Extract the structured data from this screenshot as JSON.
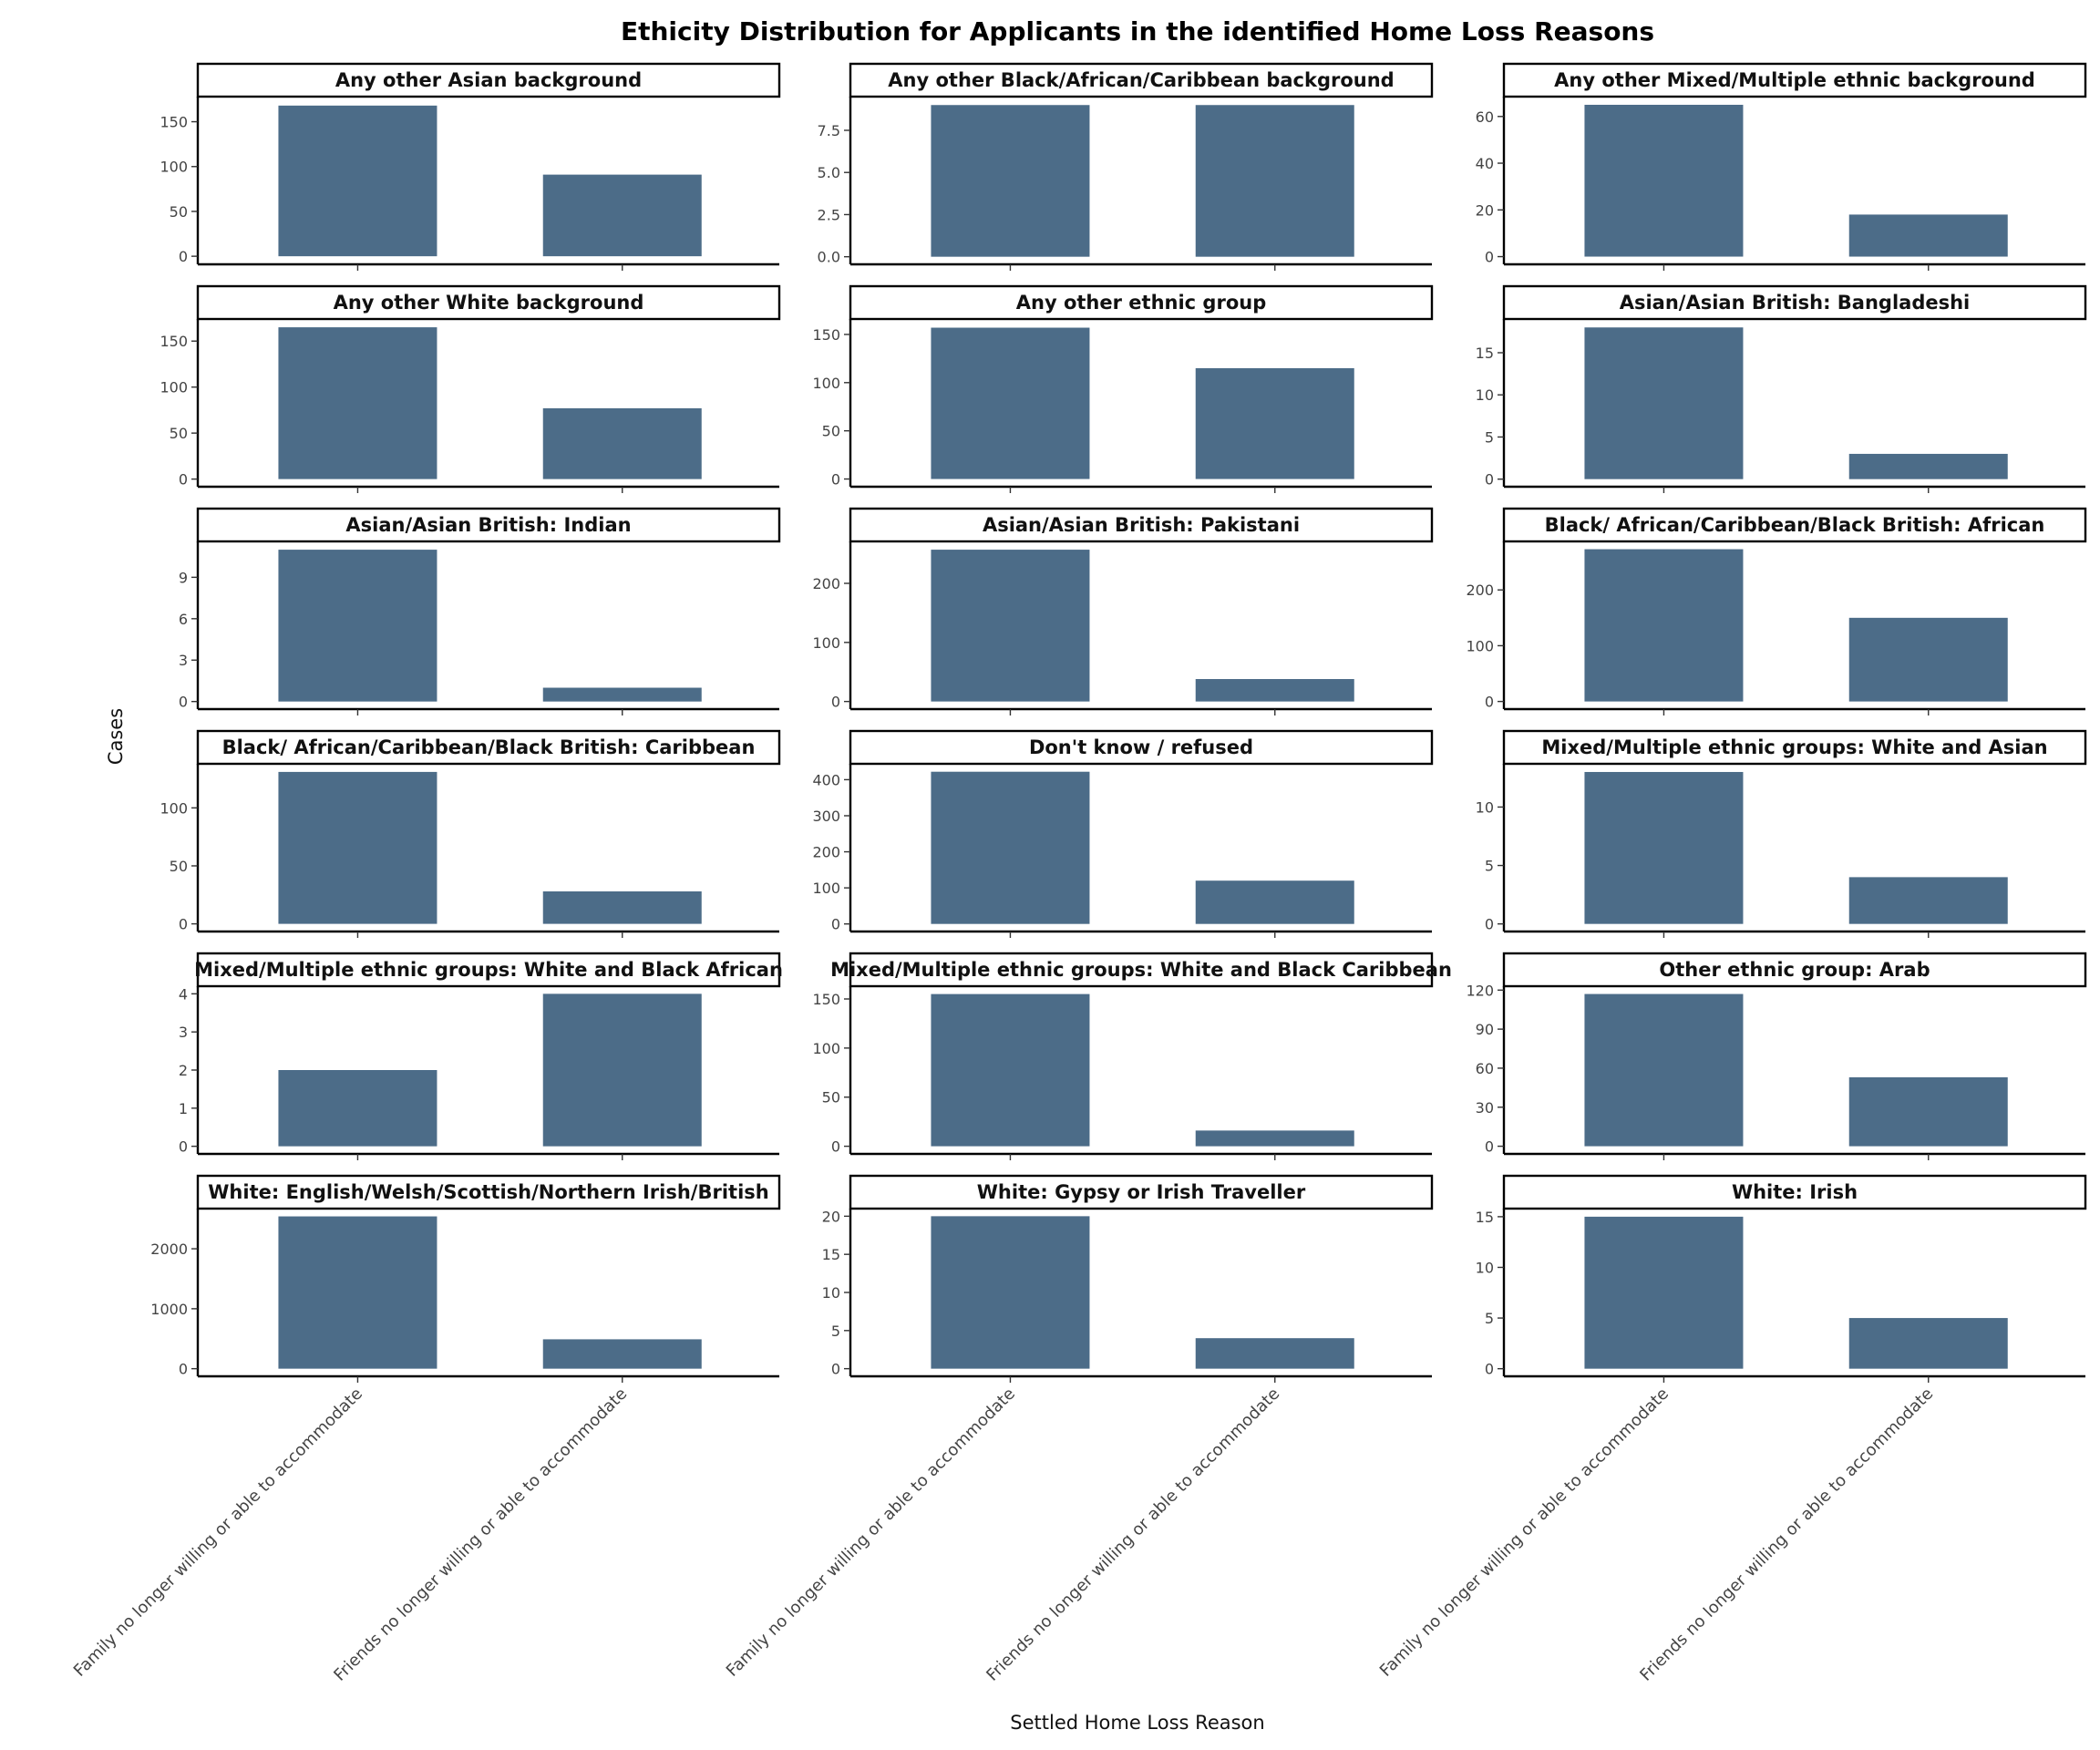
{
  "chart_data": {
    "type": "bar",
    "title": "Ethicity Distribution for Applicants in the identified Home Loss Reasons",
    "xlabel": "Settled Home Loss Reason",
    "ylabel": "Cases",
    "categories": [
      "Family no longer willing or able to accommodate",
      "Friends no longer willing or able to accommodate"
    ],
    "bar_color": "#4c6c88",
    "grid": false,
    "facets": [
      {
        "title": "Any other Asian background",
        "values": [
          168,
          91
        ],
        "ylim": [
          -9,
          178
        ],
        "yticks": [
          0,
          50,
          100,
          150
        ],
        "yticklabels": [
          "0",
          "50",
          "100",
          "150"
        ]
      },
      {
        "title": "Any other Black/African/Caribbean background",
        "values": [
          9,
          9
        ],
        "ylim": [
          -0.45,
          9.5
        ],
        "yticks": [
          0,
          2.5,
          5,
          7.5
        ],
        "yticklabels": [
          "0.0",
          "2.5",
          "5.0",
          "7.5"
        ]
      },
      {
        "title": "Any other Mixed/Multiple ethnic background",
        "values": [
          65,
          18
        ],
        "ylim": [
          -3.3,
          68.5
        ],
        "yticks": [
          0,
          20,
          40,
          60
        ],
        "yticklabels": [
          "0",
          "20",
          "40",
          "60"
        ]
      },
      {
        "title": "Any other White background",
        "values": [
          165,
          77
        ],
        "ylim": [
          -8.3,
          174
        ],
        "yticks": [
          0,
          50,
          100,
          150
        ],
        "yticklabels": [
          "0",
          "50",
          "100",
          "150"
        ]
      },
      {
        "title": "Any other ethnic group",
        "values": [
          157,
          115
        ],
        "ylim": [
          -8,
          166
        ],
        "yticks": [
          0,
          50,
          100,
          150
        ],
        "yticklabels": [
          "0",
          "50",
          "100",
          "150"
        ]
      },
      {
        "title": "Asian/Asian British: Bangladeshi",
        "values": [
          18,
          3
        ],
        "ylim": [
          -0.9,
          19
        ],
        "yticks": [
          0,
          5,
          10,
          15
        ],
        "yticklabels": [
          "0",
          "5",
          "10",
          "15"
        ]
      },
      {
        "title": "Asian/Asian British: Indian",
        "values": [
          11,
          1
        ],
        "ylim": [
          -0.55,
          11.6
        ],
        "yticks": [
          0,
          3,
          6,
          9
        ],
        "yticklabels": [
          "0",
          "3",
          "6",
          "9"
        ]
      },
      {
        "title": "Asian/Asian British: Pakistani",
        "values": [
          257,
          38
        ],
        "ylim": [
          -12.9,
          271
        ],
        "yticks": [
          0,
          100,
          200
        ],
        "yticklabels": [
          "0",
          "100",
          "200"
        ]
      },
      {
        "title": "Black/ African/Caribbean/Black British: African",
        "values": [
          273,
          150
        ],
        "ylim": [
          -13.7,
          287
        ],
        "yticks": [
          0,
          100,
          200
        ],
        "yticklabels": [
          "0",
          "100",
          "200"
        ]
      },
      {
        "title": "Black/ African/Caribbean/Black British: Caribbean",
        "values": [
          131,
          28
        ],
        "ylim": [
          -6.6,
          138
        ],
        "yticks": [
          0,
          50,
          100
        ],
        "yticklabels": [
          "0",
          "50",
          "100"
        ]
      },
      {
        "title": "Don't know / refused",
        "values": [
          422,
          120
        ],
        "ylim": [
          -21,
          444
        ],
        "yticks": [
          0,
          100,
          200,
          300,
          400
        ],
        "yticklabels": [
          "0",
          "100",
          "200",
          "300",
          "400"
        ]
      },
      {
        "title": "Mixed/Multiple ethnic groups: White and Asian",
        "values": [
          13,
          4
        ],
        "ylim": [
          -0.65,
          13.7
        ],
        "yticks": [
          0,
          5,
          10
        ],
        "yticklabels": [
          "0",
          "5",
          "10"
        ]
      },
      {
        "title": "Mixed/Multiple ethnic groups: White and Black African",
        "values": [
          2,
          4
        ],
        "ylim": [
          -0.2,
          4.2
        ],
        "yticks": [
          0,
          1,
          2,
          3,
          4
        ],
        "yticklabels": [
          "0",
          "1",
          "2",
          "3",
          "4"
        ]
      },
      {
        "title": "Mixed/Multiple ethnic groups: White and Black Caribbean",
        "values": [
          155,
          16
        ],
        "ylim": [
          -7.8,
          163
        ],
        "yticks": [
          0,
          50,
          100,
          150
        ],
        "yticklabels": [
          "0",
          "50",
          "100",
          "150"
        ]
      },
      {
        "title": "Other ethnic group: Arab",
        "values": [
          117,
          53
        ],
        "ylim": [
          -5.9,
          123
        ],
        "yticks": [
          0,
          30,
          60,
          90,
          120
        ],
        "yticklabels": [
          "0",
          "30",
          "60",
          "90",
          "120"
        ]
      },
      {
        "title": "White: English/Welsh/Scottish/Northern Irish/British",
        "values": [
          2540,
          490
        ],
        "ylim": [
          -127,
          2670
        ],
        "yticks": [
          0,
          1000,
          2000
        ],
        "yticklabels": [
          "0",
          "1000",
          "2000"
        ]
      },
      {
        "title": "White: Gypsy or Irish Traveller",
        "values": [
          20,
          4
        ],
        "ylim": [
          -1,
          21
        ],
        "yticks": [
          0,
          5,
          10,
          15,
          20
        ],
        "yticklabels": [
          "0",
          "5",
          "10",
          "15",
          "20"
        ]
      },
      {
        "title": "White: Irish",
        "values": [
          15,
          5
        ],
        "ylim": [
          -0.75,
          15.8
        ],
        "yticks": [
          0,
          5,
          10,
          15
        ],
        "yticklabels": [
          "0",
          "5",
          "10",
          "15"
        ]
      }
    ]
  }
}
